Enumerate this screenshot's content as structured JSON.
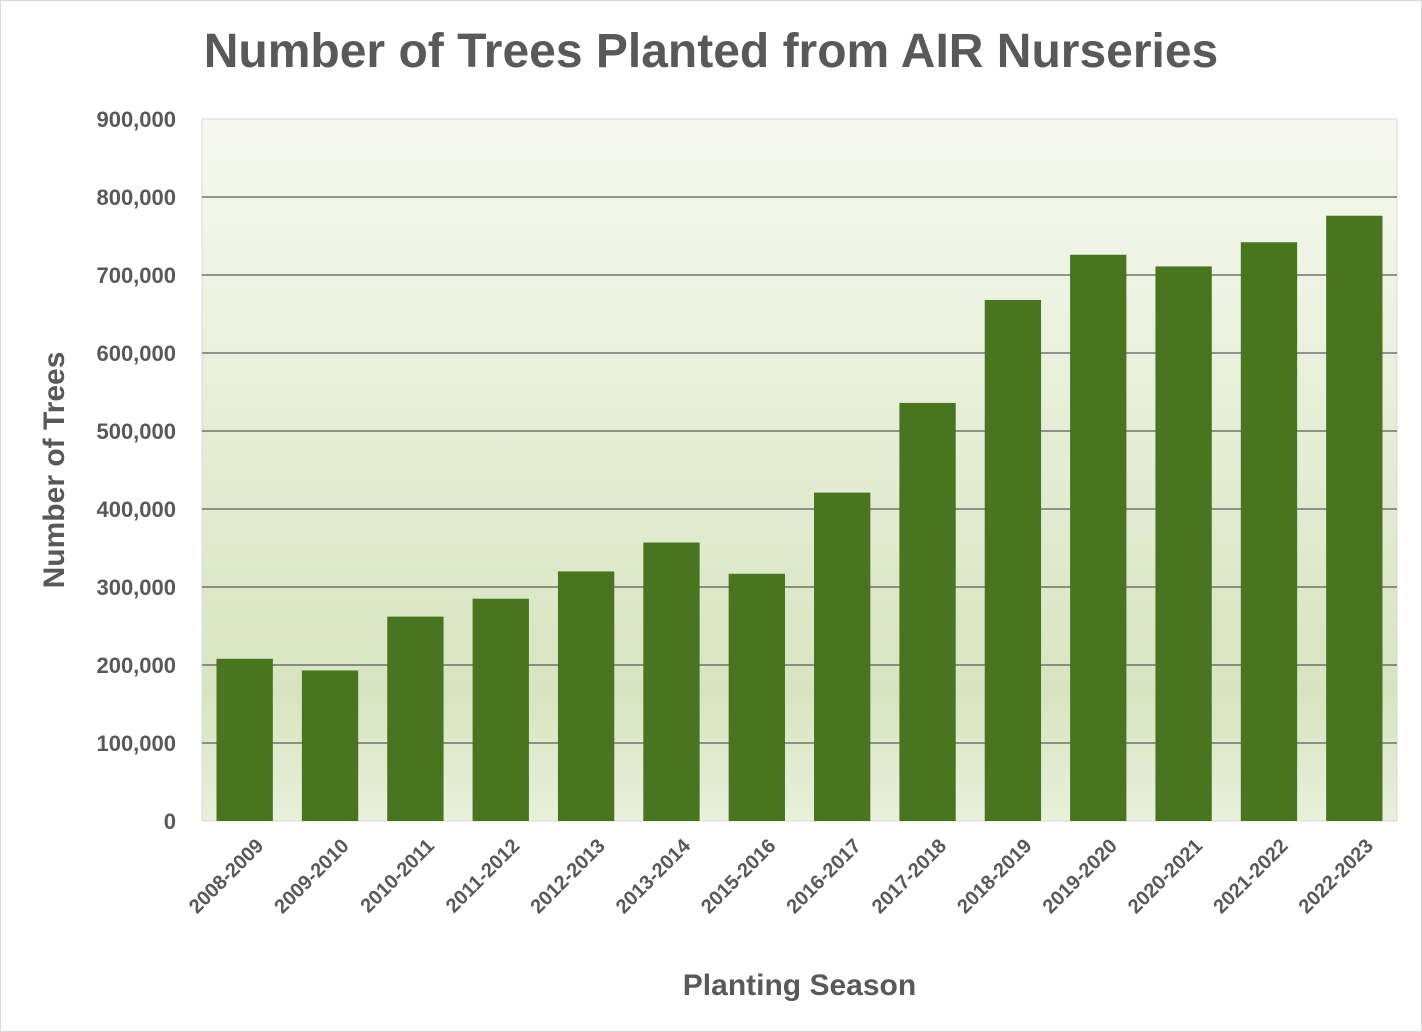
{
  "chart_data": {
    "type": "bar",
    "title": "Number of Trees Planted from AIR Nurseries",
    "xlabel": "Planting Season",
    "ylabel": "Number of Trees",
    "categories": [
      "2008-2009",
      "2009-2010",
      "2010-2011",
      "2011-2012",
      "2012-2013",
      "2013-2014",
      "2015-2016",
      "2016-2017",
      "2017-2018",
      "2018-2019",
      "2019-2020",
      "2020-2021",
      "2021-2022",
      "2022-2023"
    ],
    "values": [
      208000,
      193000,
      262000,
      285000,
      320000,
      357000,
      317000,
      421000,
      536000,
      668000,
      726000,
      711000,
      742000,
      776000
    ],
    "ylim": [
      0,
      900000
    ],
    "yticks": [
      0,
      100000,
      200000,
      300000,
      400000,
      500000,
      600000,
      700000,
      800000,
      900000
    ],
    "ytick_labels": [
      "0",
      "100,000",
      "200,000",
      "300,000",
      "400,000",
      "500,000",
      "600,000",
      "700,000",
      "800,000",
      "900,000"
    ],
    "grid": true,
    "legend": "none",
    "colors": {
      "bar": "#4a7520",
      "plot_bg_top": "#f7f9f1",
      "plot_bg_bottom": "#d8e4c0",
      "gridline": "#595959",
      "text": "#595959"
    }
  }
}
